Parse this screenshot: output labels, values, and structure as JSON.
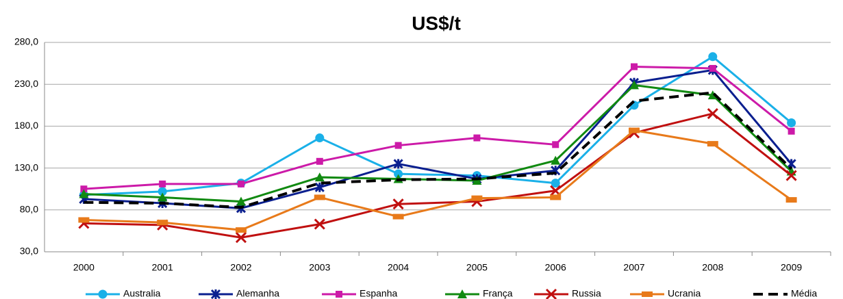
{
  "chart_data": {
    "type": "line",
    "title": "US$/t",
    "categories": [
      "2000",
      "2001",
      "2002",
      "2003",
      "2004",
      "2005",
      "2006",
      "2007",
      "2008",
      "2009"
    ],
    "ylim": [
      30,
      280
    ],
    "yticks": [
      {
        "value": 30,
        "label": "30,0"
      },
      {
        "value": 80,
        "label": "80,0"
      },
      {
        "value": 130,
        "label": "130,0"
      },
      {
        "value": 180,
        "label": "180,0"
      },
      {
        "value": 230,
        "label": "230,0"
      },
      {
        "value": 280,
        "label": "280,0"
      }
    ],
    "grid": true,
    "legend": "bottom",
    "series": [
      {
        "name": "Australia",
        "color": "#1ab0e8",
        "marker": "circle",
        "values": [
          98,
          102,
          112,
          166,
          123,
          121,
          112,
          205,
          263,
          184
        ]
      },
      {
        "name": "Alemanha",
        "color": "#0a1f8f",
        "marker": "star",
        "values": [
          93,
          88,
          82,
          107,
          135,
          117,
          127,
          232,
          247,
          135
        ]
      },
      {
        "name": "Espanha",
        "color": "#cc1aa8",
        "marker": "square",
        "values": [
          105,
          111,
          111,
          138,
          157,
          166,
          158,
          251,
          249,
          174
        ]
      },
      {
        "name": "França",
        "color": "#118a11",
        "marker": "triangle",
        "values": [
          99,
          95,
          90,
          119,
          117,
          115,
          139,
          229,
          217,
          126
        ]
      },
      {
        "name": "Russia",
        "color": "#c01010",
        "marker": "x",
        "values": [
          64,
          62,
          47,
          63,
          87,
          90,
          103,
          172,
          195,
          121
        ]
      },
      {
        "name": "Ucrania",
        "color": "#e87a1a",
        "marker": "dash",
        "values": [
          68,
          65,
          56,
          95,
          72,
          94,
          95,
          175,
          159,
          92
        ]
      },
      {
        "name": "Média",
        "color": "#000000",
        "marker": "none",
        "dashed": true,
        "values": [
          89,
          88,
          83,
          112,
          116,
          117,
          124,
          210,
          220,
          129
        ]
      }
    ]
  }
}
